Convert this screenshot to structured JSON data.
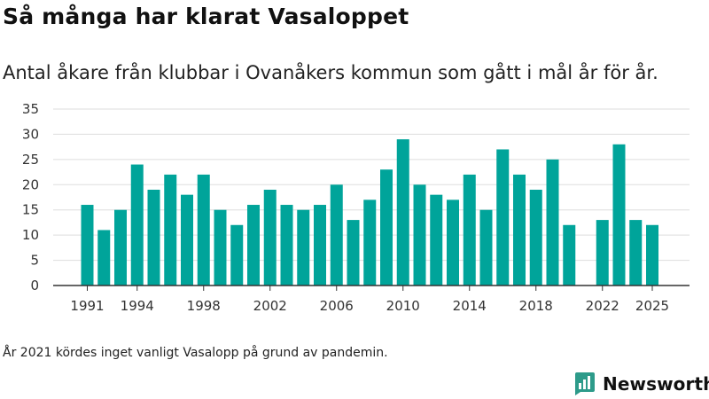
{
  "colors": {
    "bar": "#00a49a",
    "brand": "#2d9b8a",
    "grid": "#dddddd",
    "axis": "#333333"
  },
  "footnote": "År 2021 kördes inget vanligt Vasalopp på grund av pandemin.",
  "brand": {
    "name": "Newsworthy",
    "icon": "newsworthy-logo-icon"
  },
  "chart_data": {
    "type": "bar",
    "title": "Så många har klarat Vasaloppet",
    "subtitle": "Antal åkare från klubbar i Ovanåkers kommun som gått i mål år för år.",
    "xlabel": "",
    "ylabel": "",
    "ylim": [
      0,
      35
    ],
    "yticks": [
      0,
      5,
      10,
      15,
      20,
      25,
      30,
      35
    ],
    "xticks": [
      1991,
      1994,
      1998,
      2002,
      2006,
      2010,
      2014,
      2018,
      2022,
      2025
    ],
    "grid": true,
    "categories": [
      1991,
      1992,
      1993,
      1994,
      1995,
      1996,
      1997,
      1998,
      1999,
      2000,
      2001,
      2002,
      2003,
      2004,
      2005,
      2006,
      2007,
      2008,
      2009,
      2010,
      2011,
      2012,
      2013,
      2014,
      2015,
      2016,
      2017,
      2018,
      2019,
      2020,
      2021,
      2022,
      2023,
      2024,
      2025
    ],
    "values": [
      16,
      11,
      15,
      24,
      19,
      22,
      18,
      22,
      15,
      12,
      16,
      19,
      16,
      15,
      16,
      20,
      13,
      17,
      23,
      29,
      20,
      18,
      17,
      22,
      15,
      27,
      22,
      19,
      25,
      12,
      null,
      13,
      28,
      13,
      12
    ]
  }
}
